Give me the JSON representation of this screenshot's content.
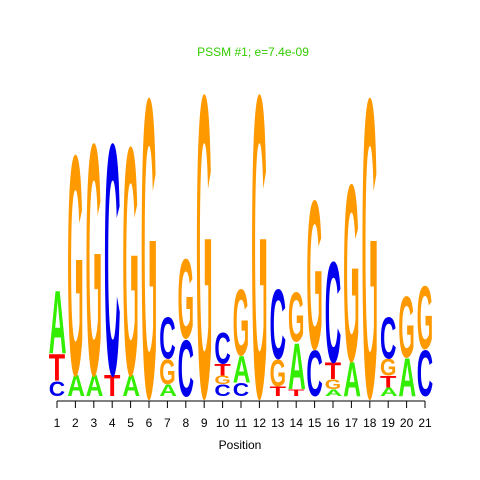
{
  "chart_data": {
    "type": "sequence-logo",
    "title": "PSSM #1; e=7.4e-09",
    "xlabel": "Position",
    "ylabel": "",
    "positions": [
      "1",
      "2",
      "3",
      "4",
      "5",
      "6",
      "7",
      "8",
      "9",
      "10",
      "11",
      "12",
      "13",
      "14",
      "15",
      "16",
      "17",
      "18",
      "19",
      "20",
      "21"
    ],
    "ylim_bits": [
      0,
      2
    ],
    "colors": {
      "A": "#33ee00",
      "C": "#0000ee",
      "G": "#ff9900",
      "T": "#ff0000"
    },
    "stacks": [
      [
        {
          "base": "C",
          "bits": 0.09
        },
        {
          "base": "T",
          "bits": 0.16
        },
        {
          "base": "A",
          "bits": 0.38
        }
      ],
      [
        {
          "base": "A",
          "bits": 0.13
        },
        {
          "base": "G",
          "bits": 1.33
        }
      ],
      [
        {
          "base": "A",
          "bits": 0.13
        },
        {
          "base": "G",
          "bits": 1.4
        }
      ],
      [
        {
          "base": "T",
          "bits": 0.13
        },
        {
          "base": "C",
          "bits": 1.4
        }
      ],
      [
        {
          "base": "A",
          "bits": 0.13
        },
        {
          "base": "G",
          "bits": 1.38
        }
      ],
      [
        {
          "base": "G",
          "bits": 1.81
        }
      ],
      [
        {
          "base": "A",
          "bits": 0.07
        },
        {
          "base": "G",
          "bits": 0.15
        },
        {
          "base": "C",
          "bits": 0.25
        }
      ],
      [
        {
          "base": "C",
          "bits": 0.34
        },
        {
          "base": "G",
          "bits": 0.48
        }
      ],
      [
        {
          "base": "G",
          "bits": 1.83
        }
      ],
      [
        {
          "base": "C",
          "bits": 0.07
        },
        {
          "base": "G",
          "bits": 0.05
        },
        {
          "base": "T",
          "bits": 0.07
        },
        {
          "base": "C",
          "bits": 0.19
        }
      ],
      [
        {
          "base": "C",
          "bits": 0.08
        },
        {
          "base": "A",
          "bits": 0.16
        },
        {
          "base": "G",
          "bits": 0.4
        }
      ],
      [
        {
          "base": "G",
          "bits": 1.83
        }
      ],
      [
        {
          "base": "T",
          "bits": 0.06
        },
        {
          "base": "G",
          "bits": 0.16
        },
        {
          "base": "C",
          "bits": 0.42
        }
      ],
      [
        {
          "base": "T",
          "bits": 0.04
        },
        {
          "base": "A",
          "bits": 0.28
        },
        {
          "base": "G",
          "bits": 0.3
        }
      ],
      [
        {
          "base": "C",
          "bits": 0.28
        },
        {
          "base": "G",
          "bits": 0.9
        }
      ],
      [
        {
          "base": "A",
          "bits": 0.04
        },
        {
          "base": "G",
          "bits": 0.06
        },
        {
          "base": "T",
          "bits": 0.1
        },
        {
          "base": "C",
          "bits": 0.61
        }
      ],
      [
        {
          "base": "A",
          "bits": 0.21
        },
        {
          "base": "G",
          "bits": 1.07
        }
      ],
      [
        {
          "base": "G",
          "bits": 1.81
        }
      ],
      [
        {
          "base": "A",
          "bits": 0.05
        },
        {
          "base": "T",
          "bits": 0.07
        },
        {
          "base": "G",
          "bits": 0.1
        },
        {
          "base": "C",
          "bits": 0.25
        }
      ],
      [
        {
          "base": "A",
          "bits": 0.23
        },
        {
          "base": "G",
          "bits": 0.37
        }
      ],
      [
        {
          "base": "C",
          "bits": 0.28
        },
        {
          "base": "G",
          "bits": 0.38
        }
      ]
    ]
  }
}
